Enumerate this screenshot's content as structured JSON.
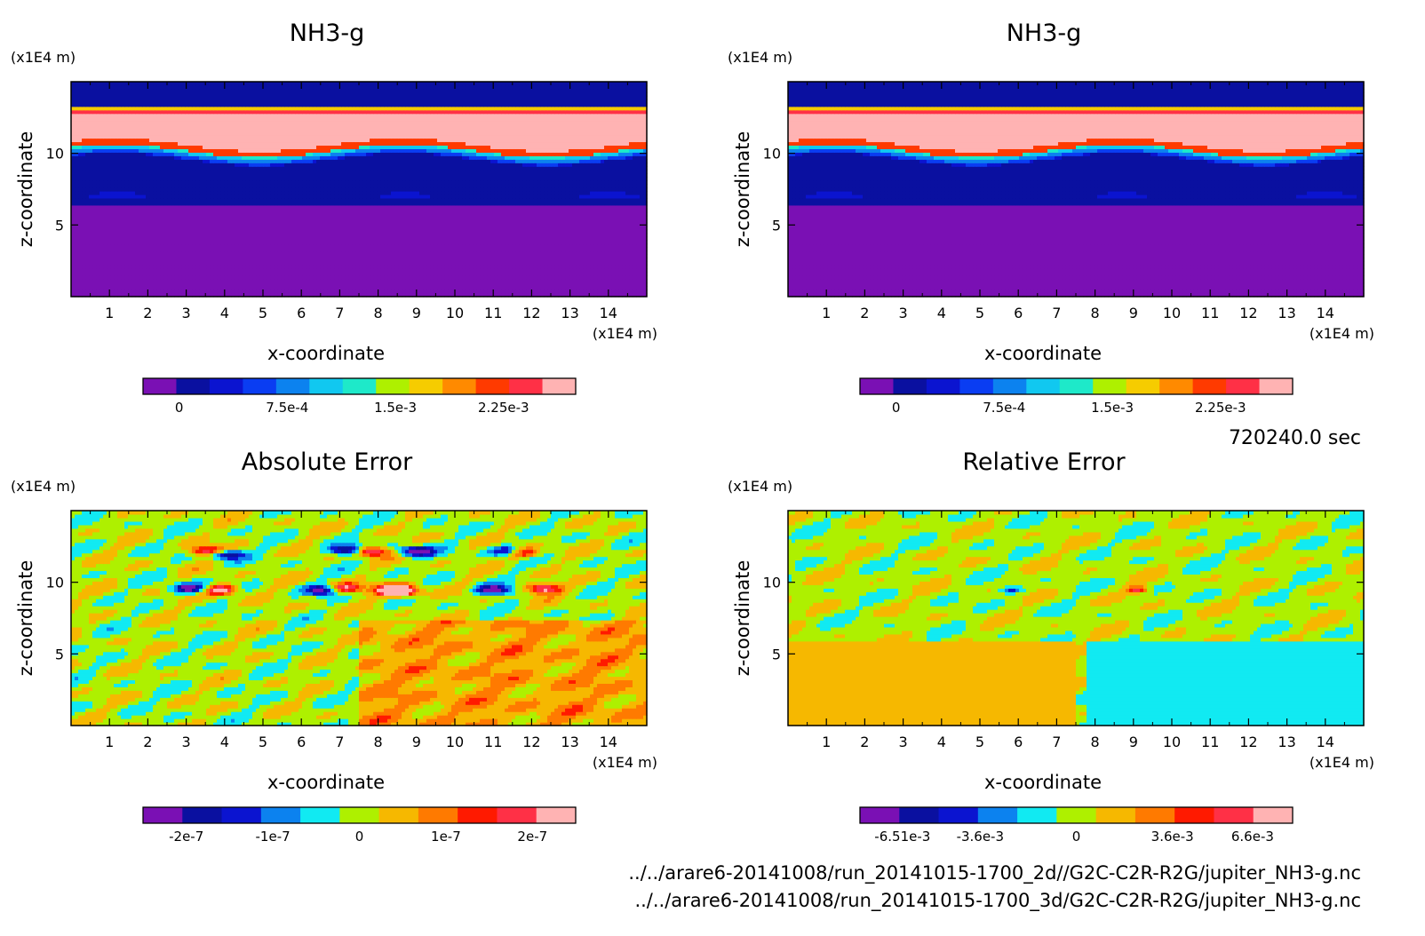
{
  "time_label": "720240.0 sec",
  "file_paths": [
    "../../arare6-20141008/run_20141015-1700_2d//G2C-C2R-R2G/jupiter_NH3-g.nc",
    "../../arare6-20141008/run_20141015-1700_3d/G2C-C2R-R2G/jupiter_NH3-g.nc"
  ],
  "colors": {
    "levels13": [
      "#7a10b4",
      "#0a10a0",
      "#0b14d0",
      "#0a3df2",
      "#0c82ef",
      "#11c8f0",
      "#1ee9c9",
      "#aef000",
      "#f6cc00",
      "#ff8a00",
      "#ff3a00",
      "#ff3046",
      "#ffb3b3"
    ],
    "levels11": [
      "#7a10b4",
      "#0a10a0",
      "#0b14d0",
      "#0c82ef",
      "#11eaf2",
      "#aef000",
      "#f6b800",
      "#ff7a00",
      "#ff1a00",
      "#ff3046",
      "#ffb3b3"
    ]
  },
  "chart_data": [
    {
      "type": "heatmap",
      "title": "NH3-g",
      "xlabel": "x-coordinate",
      "ylabel": "z-coordinate",
      "x_unit": "(x1E4 m)",
      "z_unit": "(x1E4 m)",
      "xlim": [
        0,
        15
      ],
      "zlim": [
        0,
        15
      ],
      "x_ticks": [
        "1",
        "2",
        "3",
        "4",
        "5",
        "6",
        "7",
        "8",
        "9",
        "10",
        "11",
        "12",
        "13",
        "14"
      ],
      "z_ticks": [
        "5",
        "10"
      ],
      "colorbar_ticks": [
        "0",
        "7.5e-4",
        "1.5e-3",
        "2.25e-3"
      ],
      "colorbar_range": [
        -0.00025,
        0.00275
      ],
      "field": "nh3"
    },
    {
      "type": "heatmap",
      "title": "NH3-g",
      "xlabel": "x-coordinate",
      "ylabel": "z-coordinate",
      "x_unit": "(x1E4 m)",
      "z_unit": "(x1E4 m)",
      "xlim": [
        0,
        15
      ],
      "zlim": [
        0,
        15
      ],
      "x_ticks": [
        "1",
        "2",
        "3",
        "4",
        "5",
        "6",
        "7",
        "8",
        "9",
        "10",
        "11",
        "12",
        "13",
        "14"
      ],
      "z_ticks": [
        "5",
        "10"
      ],
      "colorbar_ticks": [
        "0",
        "7.5e-4",
        "1.5e-3",
        "2.25e-3"
      ],
      "colorbar_range": [
        -0.00025,
        0.00275
      ],
      "field": "nh3"
    },
    {
      "type": "heatmap",
      "title": "Absolute Error",
      "xlabel": "x-coordinate",
      "ylabel": "z-coordinate",
      "x_unit": "(x1E4 m)",
      "z_unit": "(x1E4 m)",
      "xlim": [
        0,
        15
      ],
      "zlim": [
        0,
        15
      ],
      "x_ticks": [
        "1",
        "2",
        "3",
        "4",
        "5",
        "6",
        "7",
        "8",
        "9",
        "10",
        "11",
        "12",
        "13",
        "14"
      ],
      "z_ticks": [
        "5",
        "10"
      ],
      "colorbar_ticks": [
        "-2e-7",
        "-1e-7",
        "0",
        "1e-7",
        "2e-7"
      ],
      "colorbar_range": [
        -2.5e-07,
        2.5e-07
      ],
      "field": "abs"
    },
    {
      "type": "heatmap",
      "title": "Relative Error",
      "xlabel": "x-coordinate",
      "ylabel": "z-coordinate",
      "x_unit": "(x1E4 m)",
      "z_unit": "(x1E4 m)",
      "xlim": [
        0,
        15
      ],
      "zlim": [
        0,
        15
      ],
      "x_ticks": [
        "1",
        "2",
        "3",
        "4",
        "5",
        "6",
        "7",
        "8",
        "9",
        "10",
        "11",
        "12",
        "13",
        "14"
      ],
      "z_ticks": [
        "5",
        "10"
      ],
      "colorbar_ticks": [
        "-6.51e-3",
        "-3.6e-3",
        "0",
        "3.6e-3",
        "6.6e-3"
      ],
      "colorbar_range": [
        -0.0081,
        0.0081
      ],
      "field": "rel"
    }
  ]
}
